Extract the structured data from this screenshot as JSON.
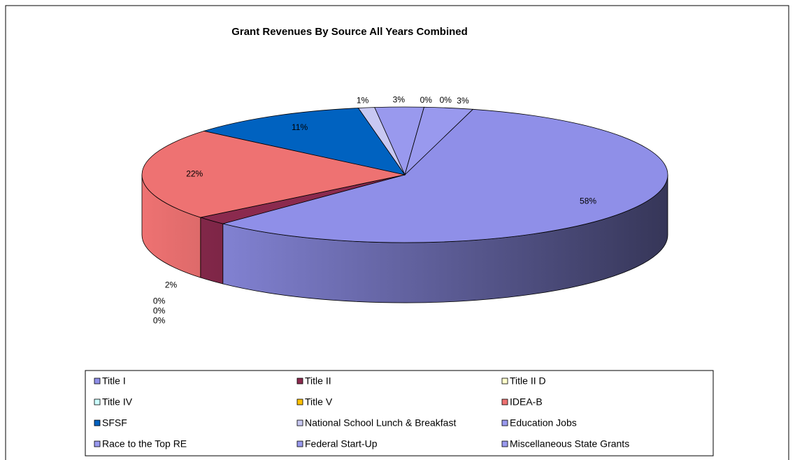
{
  "chart_data": {
    "type": "pie3d",
    "title": "Grant Revenues By Source All Years Combined",
    "categories": [
      "Title I",
      "Title II",
      "Title II D",
      "Title IV",
      "Title V",
      "IDEA-B",
      "SFSF",
      "National School Lunch & Breakfast",
      "Education Jobs",
      "Race to the Top RE",
      "Federal Start-Up",
      "Miscellaneous State Grants"
    ],
    "values": [
      58,
      2,
      0,
      0,
      0,
      22,
      11,
      1,
      3,
      0,
      0,
      3
    ],
    "value_labels": [
      "58%",
      "2%",
      "0%",
      "0%",
      "0%",
      "22%",
      "11%",
      "1%",
      "3%",
      "0%",
      "0%",
      "3%"
    ],
    "colors": [
      "#8f8fe8",
      "#8b2a4e",
      "#ffffcc",
      "#ccffff",
      "#ffc000",
      "#ee7272",
      "#0062c0",
      "#c8c8f2",
      "#9999ee",
      "#9999ee",
      "#9999ee",
      "#9999ee"
    ],
    "legend": "bottom"
  }
}
